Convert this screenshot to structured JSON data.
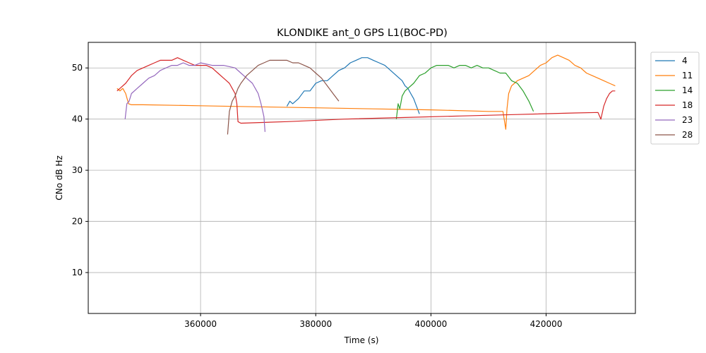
{
  "chart_data": {
    "type": "line",
    "title": "KLONDIKE ant_0 GPS L1(BOC-PD)",
    "xlabel": "Time (s)",
    "ylabel": "CNo dB Hz",
    "xlim": [
      340500,
      435500
    ],
    "ylim": [
      2,
      55
    ],
    "xticks": [
      360000,
      380000,
      400000,
      420000
    ],
    "yticks": [
      10,
      20,
      30,
      40,
      50
    ],
    "grid": true,
    "legend_position": "outside-right-top",
    "series": [
      {
        "name": "4",
        "color": "#1f77b4",
        "x": [
          375000,
          375500,
          376000,
          377000,
          378000,
          379000,
          380000,
          381000,
          382000,
          383000,
          384000,
          385000,
          386000,
          387000,
          388000,
          389000,
          390000,
          391000,
          392000,
          393000,
          394000,
          395000,
          395500,
          396000,
          396500,
          397000,
          397500,
          398000
        ],
        "y": [
          42.5,
          43.5,
          43.0,
          44.0,
          45.5,
          45.5,
          47.0,
          47.5,
          47.5,
          48.5,
          49.5,
          50.0,
          51.0,
          51.5,
          52.0,
          52.0,
          51.5,
          51.0,
          50.5,
          49.5,
          48.5,
          47.5,
          46.5,
          46.0,
          45.0,
          44.0,
          42.5,
          41.0
        ]
      },
      {
        "name": "11",
        "color": "#ff7f0e",
        "x": [
          345500,
          346000,
          346500,
          347000,
          347500,
          348000,
          350000,
          360000,
          370000,
          380000,
          390000,
          400000,
          410000,
          412500,
          413000,
          413200,
          413500,
          414000,
          414500,
          415000,
          416000,
          417000,
          418000,
          419000,
          420000,
          421000,
          422000,
          423000,
          424000,
          425000,
          426000,
          427000,
          428000,
          429000,
          430000,
          431000,
          432000
        ],
        "y": [
          46.0,
          45.5,
          46.0,
          45.0,
          43.0,
          42.8,
          42.8,
          42.6,
          42.4,
          42.2,
          42.0,
          41.8,
          41.5,
          41.5,
          38.0,
          42.0,
          45.0,
          46.5,
          47.0,
          47.5,
          48.0,
          48.5,
          49.5,
          50.5,
          51.0,
          52.0,
          52.5,
          52.0,
          51.5,
          50.5,
          50.0,
          49.0,
          48.5,
          48.0,
          47.5,
          47.0,
          46.5
        ]
      },
      {
        "name": "14",
        "color": "#2ca02c",
        "x": [
          394000,
          394300,
          394600,
          395000,
          395500,
          396000,
          397000,
          398000,
          399000,
          400000,
          401000,
          402000,
          403000,
          404000,
          405000,
          406000,
          407000,
          408000,
          409000,
          410000,
          411000,
          412000,
          413000,
          414000,
          415000,
          416000,
          417000,
          417800
        ],
        "y": [
          40.0,
          43.0,
          42.0,
          44.5,
          45.5,
          46.0,
          47.0,
          48.5,
          49.0,
          50.0,
          50.5,
          50.5,
          50.5,
          50.0,
          50.5,
          50.5,
          50.0,
          50.5,
          50.0,
          50.0,
          49.5,
          49.0,
          49.0,
          47.5,
          47.0,
          45.5,
          43.5,
          41.5
        ]
      },
      {
        "name": "18",
        "color": "#d62728",
        "x": [
          345500,
          346000,
          347000,
          348000,
          349000,
          350000,
          351000,
          352000,
          353000,
          354000,
          355000,
          356000,
          357000,
          358000,
          359000,
          360000,
          361000,
          362000,
          363000,
          364000,
          364500,
          365000,
          365500,
          366000,
          366300,
          366500,
          367000,
          375000,
          385000,
          395000,
          405000,
          415000,
          425000,
          429000,
          429500,
          430000,
          430500,
          431000,
          431500,
          432000
        ],
        "y": [
          45.5,
          46.0,
          47.0,
          48.5,
          49.5,
          50.0,
          50.5,
          51.0,
          51.5,
          51.5,
          51.5,
          52.0,
          51.5,
          51.0,
          50.5,
          50.5,
          50.5,
          50.0,
          49.0,
          48.0,
          47.5,
          47.0,
          46.0,
          45.0,
          43.0,
          39.5,
          39.2,
          39.5,
          40.0,
          40.3,
          40.6,
          40.9,
          41.2,
          41.3,
          40.0,
          42.5,
          44.0,
          45.0,
          45.5,
          45.5
        ]
      },
      {
        "name": "23",
        "color": "#9467bd",
        "x": [
          346900,
          347200,
          347600,
          348000,
          349000,
          350000,
          351000,
          352000,
          353000,
          354000,
          355000,
          356000,
          357000,
          358000,
          359000,
          360000,
          362000,
          364000,
          366000,
          367000,
          368000,
          369000,
          370000,
          370500,
          371000,
          371200
        ],
        "y": [
          40.0,
          43.0,
          43.5,
          45.0,
          46.0,
          47.0,
          48.0,
          48.5,
          49.5,
          50.0,
          50.5,
          50.5,
          51.0,
          50.5,
          50.5,
          51.0,
          50.5,
          50.5,
          50.0,
          49.0,
          48.0,
          47.0,
          45.0,
          43.0,
          40.5,
          37.5
        ]
      },
      {
        "name": "28",
        "color": "#8c564b",
        "x": [
          364700,
          365000,
          365500,
          366000,
          366500,
          367000,
          368000,
          369000,
          370000,
          371000,
          372000,
          373000,
          374000,
          375000,
          376000,
          377000,
          378000,
          379000,
          380000,
          381000,
          382000,
          383000,
          384000
        ],
        "y": [
          37.0,
          41.5,
          43.5,
          44.5,
          46.0,
          47.0,
          48.5,
          49.5,
          50.5,
          51.0,
          51.5,
          51.5,
          51.5,
          51.5,
          51.0,
          51.0,
          50.5,
          50.0,
          49.0,
          48.0,
          46.5,
          45.0,
          43.5
        ]
      }
    ]
  }
}
